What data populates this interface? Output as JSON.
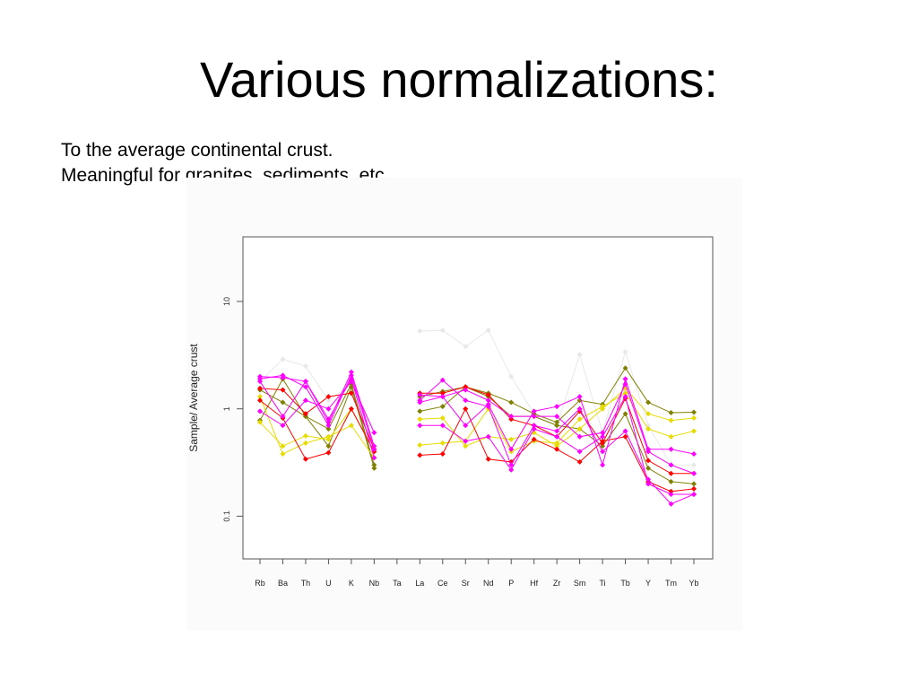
{
  "slide": {
    "title": "Various normalizations:",
    "lines": [
      "To the average continental crust.",
      "Meaningful for granites, sediments, etc."
    ]
  },
  "chart_data": {
    "type": "line",
    "ylabel": "Sample/ Average crust",
    "xlabel": "",
    "y_scale": "log",
    "ylim": [
      0.04,
      40
    ],
    "y_ticks": [
      0.1,
      1,
      10
    ],
    "y_tick_labels": [
      "0.1",
      "1",
      "10"
    ],
    "categories": [
      "Rb",
      "Ba",
      "Th",
      "U",
      "K",
      "Nb",
      "Ta",
      "La",
      "Ce",
      "Sr",
      "Nd",
      "P",
      "Hf",
      "Zr",
      "Sm",
      "Ti",
      "Tb",
      "Y",
      "Tm",
      "Yb"
    ],
    "legend": "none",
    "grid": false,
    "series": [
      {
        "color": "#e8e8e8",
        "values": [
          1.8,
          2.9,
          2.5,
          1.2,
          1.7,
          0.6,
          null,
          5.3,
          5.4,
          3.8,
          5.4,
          2.0,
          0.9,
          0.7,
          3.2,
          0.6,
          3.4,
          0.7,
          0.3,
          0.3
        ]
      },
      {
        "color": "#808000",
        "values": [
          1.5,
          1.15,
          0.85,
          0.45,
          1.6,
          0.28,
          null,
          0.95,
          1.05,
          1.6,
          1.4,
          1.15,
          0.9,
          0.75,
          1.2,
          1.1,
          2.4,
          1.15,
          0.92,
          0.93
        ]
      },
      {
        "color": "#808000",
        "values": [
          0.78,
          1.9,
          0.85,
          0.65,
          1.7,
          0.3,
          null,
          1.3,
          1.45,
          1.6,
          1.3,
          0.85,
          0.85,
          0.7,
          0.65,
          0.45,
          0.9,
          0.28,
          0.21,
          0.2
        ]
      },
      {
        "color": "#e6dc00",
        "values": [
          1.3,
          0.38,
          0.48,
          0.55,
          0.7,
          0.35,
          null,
          0.8,
          0.82,
          0.45,
          0.55,
          0.52,
          0.6,
          0.45,
          0.65,
          1.0,
          1.55,
          0.9,
          0.78,
          0.82
        ]
      },
      {
        "color": "#e6dc00",
        "values": [
          0.75,
          0.45,
          0.56,
          0.52,
          1.0,
          0.4,
          null,
          0.46,
          0.48,
          0.5,
          1.0,
          0.4,
          0.5,
          0.48,
          0.8,
          1.05,
          1.4,
          0.65,
          0.55,
          0.62
        ]
      },
      {
        "color": "#ff0000",
        "values": [
          1.55,
          1.5,
          0.9,
          1.3,
          1.4,
          0.42,
          null,
          1.4,
          1.4,
          1.6,
          1.35,
          0.8,
          0.7,
          0.55,
          0.95,
          0.48,
          1.25,
          0.33,
          0.25,
          0.25
        ]
      },
      {
        "color": "#ff0000",
        "values": [
          1.2,
          0.82,
          0.34,
          0.39,
          1.0,
          0.4,
          null,
          0.37,
          0.38,
          1.0,
          0.34,
          0.32,
          0.52,
          0.42,
          0.32,
          0.5,
          0.55,
          0.21,
          0.17,
          0.18
        ]
      },
      {
        "color": "#ff00ff",
        "values": [
          2.0,
          1.95,
          1.8,
          0.75,
          2.2,
          0.45,
          null,
          1.35,
          1.3,
          1.5,
          1.2,
          0.85,
          0.85,
          0.85,
          0.55,
          0.6,
          1.7,
          0.4,
          0.3,
          0.25
        ]
      },
      {
        "color": "#ff00ff",
        "values": [
          1.9,
          2.05,
          1.6,
          0.7,
          2.05,
          0.42,
          null,
          1.2,
          1.85,
          1.2,
          1.05,
          0.3,
          0.7,
          0.62,
          1.0,
          0.4,
          0.62,
          0.22,
          0.13,
          0.16
        ]
      },
      {
        "color": "#ff00ff",
        "values": [
          0.95,
          0.7,
          1.2,
          1.0,
          1.8,
          0.6,
          null,
          1.15,
          1.3,
          0.7,
          1.1,
          0.42,
          0.95,
          1.05,
          1.3,
          0.3,
          1.9,
          0.42,
          0.42,
          0.38
        ]
      },
      {
        "color": "#ff00ff",
        "values": [
          1.8,
          0.85,
          1.8,
          0.8,
          1.9,
          0.35,
          null,
          0.7,
          0.7,
          0.5,
          0.55,
          0.27,
          0.65,
          0.55,
          0.4,
          0.55,
          1.3,
          0.2,
          0.16,
          0.16
        ]
      }
    ]
  }
}
